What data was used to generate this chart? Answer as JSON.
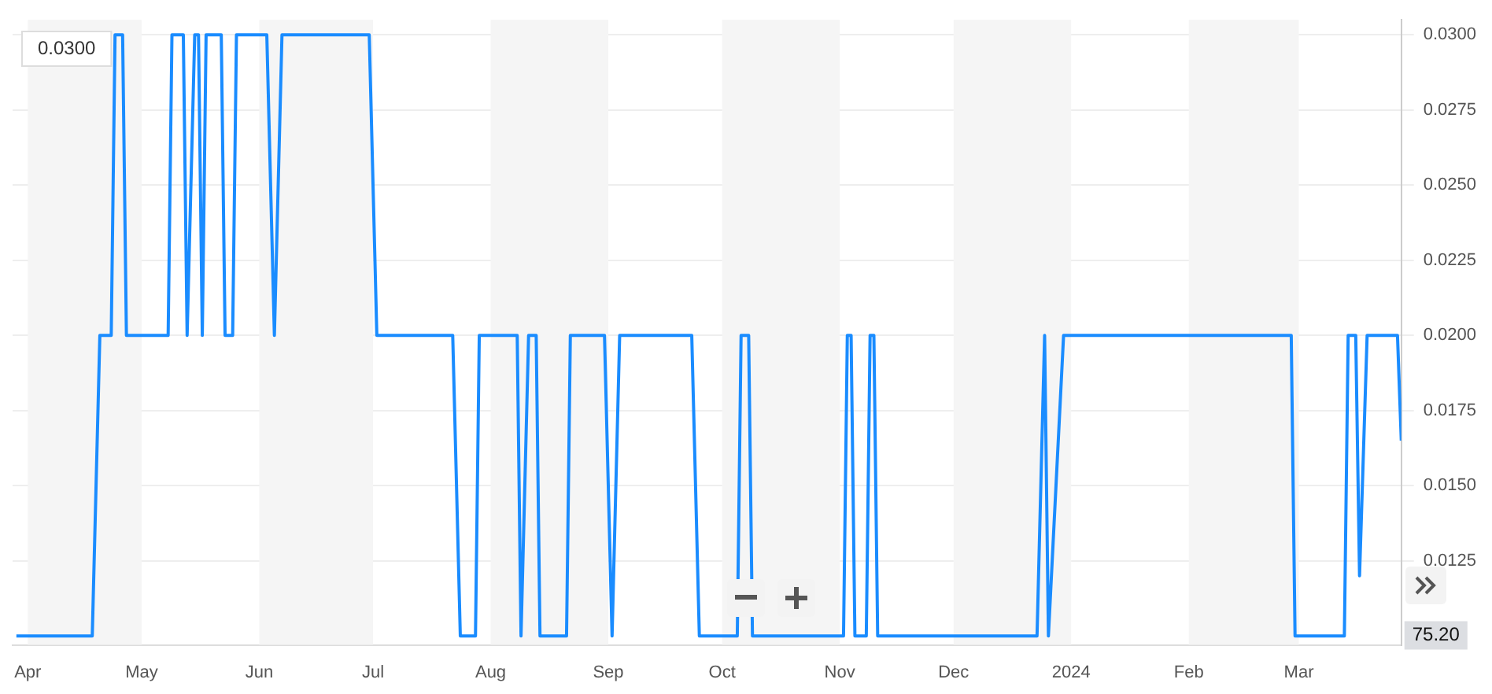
{
  "chart_data": {
    "type": "line",
    "marker": "none",
    "line_style": "solid",
    "grid": "y",
    "legend": false,
    "xlim": [
      "2023-03-28",
      "2024-03-28"
    ],
    "xticks": [
      {
        "value": "2023-04-01",
        "label": "Apr"
      },
      {
        "value": "2023-05-01",
        "label": "May"
      },
      {
        "value": "2023-06-01",
        "label": "Jun"
      },
      {
        "value": "2023-07-01",
        "label": "Jul"
      },
      {
        "value": "2023-08-01",
        "label": "Aug"
      },
      {
        "value": "2023-09-01",
        "label": "Sep"
      },
      {
        "value": "2023-10-01",
        "label": "Oct"
      },
      {
        "value": "2023-11-01",
        "label": "Nov"
      },
      {
        "value": "2023-12-01",
        "label": "Dec"
      },
      {
        "value": "2024-01-01",
        "label": "2024"
      },
      {
        "value": "2024-02-01",
        "label": "Feb"
      },
      {
        "value": "2024-03-01",
        "label": "Mar"
      }
    ],
    "ylim": [
      0.0097,
      0.0305
    ],
    "yticks": [
      {
        "value": 0.0125,
        "label": "0.0125"
      },
      {
        "value": 0.015,
        "label": "0.0150"
      },
      {
        "value": 0.0175,
        "label": "0.0175"
      },
      {
        "value": 0.02,
        "label": "0.0200"
      },
      {
        "value": 0.0225,
        "label": "0.0225"
      },
      {
        "value": 0.025,
        "label": "0.0250"
      },
      {
        "value": 0.0275,
        "label": "0.0275"
      },
      {
        "value": 0.03,
        "label": "0.0300"
      }
    ],
    "bands": [
      {
        "axis": "x",
        "from": "2023-04-01",
        "to": "2023-05-01",
        "color": "#f5f5f5"
      },
      {
        "axis": "x",
        "from": "2023-06-01",
        "to": "2023-07-01",
        "color": "#f5f5f5"
      },
      {
        "axis": "x",
        "from": "2023-08-01",
        "to": "2023-09-01",
        "color": "#f5f5f5"
      },
      {
        "axis": "x",
        "from": "2023-10-01",
        "to": "2023-11-01",
        "color": "#f5f5f5"
      },
      {
        "axis": "x",
        "from": "2023-12-01",
        "to": "2024-01-01",
        "color": "#f5f5f5"
      },
      {
        "axis": "x",
        "from": "2024-02-01",
        "to": "2024-03-01",
        "color": "#f5f5f5"
      }
    ],
    "annotations": [
      "0.0300",
      "75.20"
    ],
    "series": [
      {
        "color": "#1a8cff",
        "x": [
          "2023-03-29",
          "2023-04-18",
          "2023-04-20",
          "2023-04-23",
          "2023-04-24",
          "2023-04-26",
          "2023-04-27",
          "2023-05-08",
          "2023-05-09",
          "2023-05-12",
          "2023-05-13",
          "2023-05-15",
          "2023-05-16",
          "2023-05-17",
          "2023-05-18",
          "2023-05-22",
          "2023-05-23",
          "2023-05-25",
          "2023-05-26",
          "2023-06-03",
          "2023-06-05",
          "2023-06-07",
          "2023-06-30",
          "2023-07-02",
          "2023-07-22",
          "2023-07-24",
          "2023-07-28",
          "2023-07-29",
          "2023-08-08",
          "2023-08-09",
          "2023-08-11",
          "2023-08-13",
          "2023-08-14",
          "2023-08-21",
          "2023-08-22",
          "2023-08-31",
          "2023-09-02",
          "2023-09-04",
          "2023-09-23",
          "2023-09-25",
          "2023-10-05",
          "2023-10-06",
          "2023-10-08",
          "2023-10-09",
          "2023-11-02",
          "2023-11-03",
          "2023-11-04",
          "2023-11-05",
          "2023-11-08",
          "2023-11-09",
          "2023-11-10",
          "2023-11-11",
          "2023-12-23",
          "2023-12-25",
          "2023-12-26",
          "2023-12-30",
          "2024-02-28",
          "2024-02-29",
          "2024-03-13",
          "2024-03-14",
          "2024-03-16",
          "2024-03-17",
          "2024-03-19",
          "2024-03-27",
          "2024-03-28"
        ],
        "values": [
          0.01,
          0.01,
          0.02,
          0.02,
          0.03,
          0.03,
          0.02,
          0.02,
          0.03,
          0.03,
          0.02,
          0.03,
          0.03,
          0.02,
          0.03,
          0.03,
          0.02,
          0.02,
          0.03,
          0.03,
          0.02,
          0.03,
          0.03,
          0.02,
          0.02,
          0.01,
          0.01,
          0.02,
          0.02,
          0.01,
          0.02,
          0.02,
          0.01,
          0.01,
          0.02,
          0.02,
          0.01,
          0.02,
          0.02,
          0.01,
          0.01,
          0.02,
          0.02,
          0.01,
          0.01,
          0.02,
          0.02,
          0.01,
          0.01,
          0.02,
          0.02,
          0.01,
          0.01,
          0.02,
          0.01,
          0.02,
          0.02,
          0.01,
          0.01,
          0.02,
          0.02,
          0.012,
          0.02,
          0.02,
          0.0165
        ]
      }
    ]
  }
}
